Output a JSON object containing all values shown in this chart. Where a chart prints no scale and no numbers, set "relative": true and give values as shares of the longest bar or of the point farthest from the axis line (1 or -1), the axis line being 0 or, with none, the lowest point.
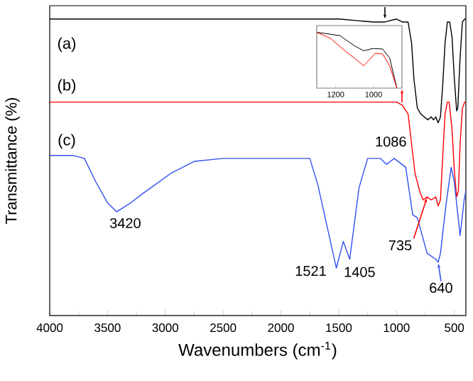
{
  "chart_data": [
    {
      "type": "line",
      "xlabel": "Wavenumbers (cm$^{-1}$)",
      "ylabel": "Transmittance (%)",
      "relative": true,
      "xlim": [
        4000,
        400
      ],
      "xticks": [
        4000,
        3500,
        3000,
        2500,
        2000,
        1500,
        1000,
        500
      ],
      "series": [
        {
          "name": "(a)",
          "color": "#000000",
          "x": [
            4000,
            3500,
            3000,
            2500,
            2000,
            1500,
            1200,
            1100,
            1000,
            950,
            900,
            870,
            850,
            820,
            790,
            760,
            730,
            700,
            680,
            660,
            640,
            620,
            600,
            580,
            560,
            540,
            520,
            500,
            480,
            470,
            450,
            430,
            410,
            400
          ],
          "values": [
            1.0,
            1.0,
            1.0,
            1.0,
            1.0,
            1.0,
            0.99,
            0.99,
            1.0,
            0.99,
            0.99,
            0.92,
            0.8,
            0.7,
            0.68,
            0.67,
            0.66,
            0.67,
            0.66,
            0.67,
            0.65,
            0.67,
            0.78,
            0.92,
            0.99,
            0.99,
            0.94,
            0.8,
            0.69,
            0.7,
            0.87,
            0.99,
            1.0,
            1.0
          ]
        },
        {
          "name": "(b)",
          "color": "#ff0000",
          "x": [
            4000,
            3500,
            3000,
            2500,
            2000,
            1500,
            1200,
            1100,
            1000,
            950,
            900,
            870,
            840,
            800,
            770,
            735,
            700,
            660,
            640,
            620,
            600,
            580,
            560,
            545,
            520,
            500,
            480,
            465,
            450,
            430,
            410,
            400
          ],
          "values": [
            0.72,
            0.72,
            0.72,
            0.72,
            0.72,
            0.72,
            0.72,
            0.72,
            0.72,
            0.71,
            0.68,
            0.58,
            0.48,
            0.42,
            0.39,
            0.4,
            0.39,
            0.4,
            0.37,
            0.39,
            0.54,
            0.68,
            0.72,
            0.72,
            0.63,
            0.49,
            0.4,
            0.42,
            0.58,
            0.7,
            0.72,
            0.72
          ]
        },
        {
          "name": "(c)",
          "color": "#3050f0",
          "x": [
            4000,
            3800,
            3700,
            3600,
            3500,
            3420,
            3300,
            3200,
            2950,
            2750,
            2500,
            2000,
            1750,
            1680,
            1600,
            1521,
            1460,
            1405,
            1325,
            1250,
            1140,
            1086,
            1020,
            920,
            860,
            820,
            735,
            660,
            640,
            620,
            570,
            527,
            500,
            450,
            415,
            400
          ],
          "values": [
            0.54,
            0.54,
            0.53,
            0.45,
            0.38,
            0.35,
            0.38,
            0.41,
            0.48,
            0.52,
            0.53,
            0.53,
            0.53,
            0.44,
            0.3,
            0.16,
            0.25,
            0.19,
            0.43,
            0.53,
            0.53,
            0.51,
            0.53,
            0.5,
            0.34,
            0.33,
            0.21,
            0.19,
            0.18,
            0.21,
            0.38,
            0.5,
            0.45,
            0.27,
            0.39,
            0.42
          ]
        }
      ],
      "annotations": [
        {
          "text": "3420",
          "x": 3420,
          "y": 0.35
        },
        {
          "text": "1521",
          "x": 1521,
          "y": 0.16
        },
        {
          "text": "1405",
          "x": 1405,
          "y": 0.19
        },
        {
          "text": "1086",
          "x": 1086,
          "y": 0.51
        },
        {
          "text": "735",
          "x": 735,
          "y": 0.4
        },
        {
          "text": "640",
          "x": 640,
          "y": 0.18
        }
      ]
    },
    {
      "type": "line",
      "relative": true,
      "xlim": [
        1300,
        850
      ],
      "xticks": [
        1200,
        1000
      ],
      "tick_labels": "x",
      "series": [
        {
          "color": "#000000",
          "x": [
            1300,
            1177,
            1102,
            1052,
            1002,
            952,
            915,
            877
          ],
          "values": [
            1.0,
            0.94,
            0.76,
            0.67,
            0.71,
            0.7,
            0.54,
            0.0
          ]
        },
        {
          "color": "#ff0000",
          "x": [
            1300,
            1227,
            1152,
            1102,
            1052,
            1027,
            990,
            952,
            915,
            877
          ],
          "values": [
            1.0,
            0.89,
            0.67,
            0.54,
            0.4,
            0.49,
            0.625,
            0.61,
            0.4,
            0.0
          ]
        }
      ]
    }
  ]
}
